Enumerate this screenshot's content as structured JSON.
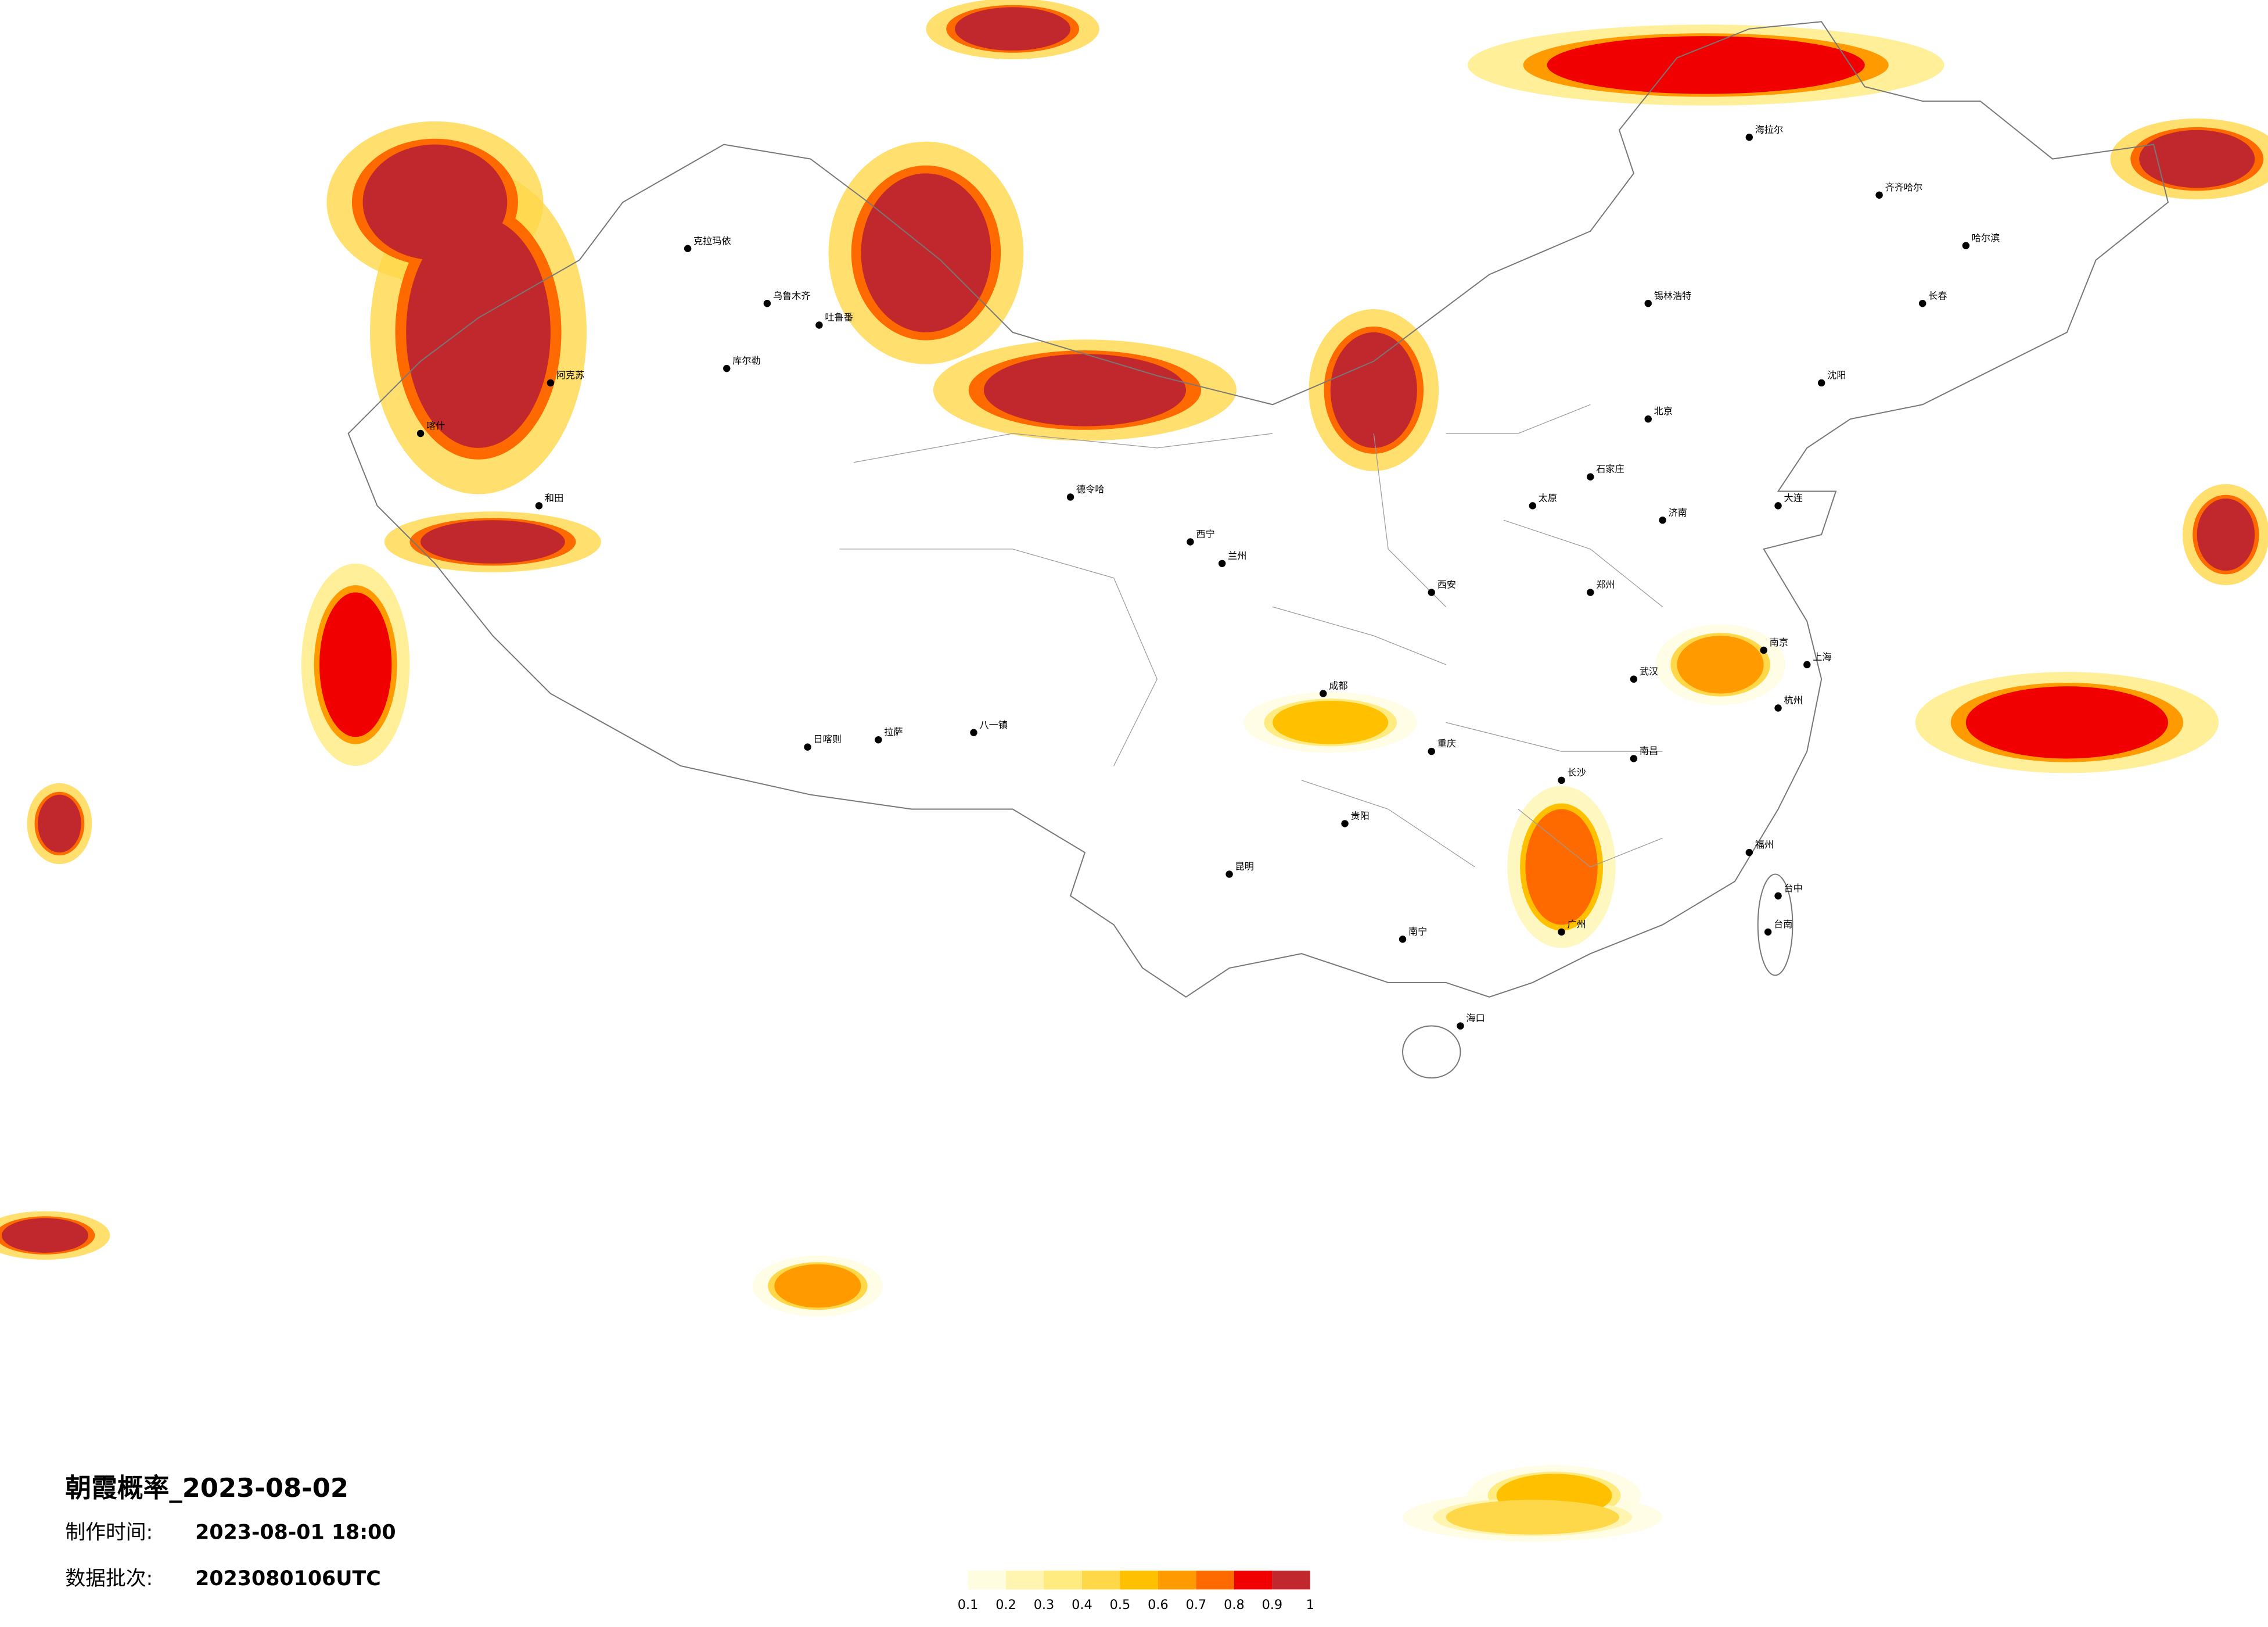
{
  "header": {
    "title": "朝霞概率_2023-08-02",
    "made_label": "制作时间:",
    "made_time": "2023-08-01 18:00",
    "batch_label": "数据批次:",
    "batch": "2023080106UTC"
  },
  "legend": {
    "colors": [
      "#fffde0",
      "#fff5b0",
      "#ffeb80",
      "#ffd84a",
      "#ffc000",
      "#ff9a00",
      "#ff6a00",
      "#f00000",
      "#c0282d"
    ],
    "ticks": [
      0.1,
      0.2,
      0.3,
      0.4,
      0.5,
      0.6,
      0.7,
      0.8,
      0.9,
      1
    ]
  },
  "cities": [
    "克拉玛依",
    "乌鲁木齐",
    "吐鲁番",
    "库尔勒",
    "阿克苏",
    "和田",
    "喀什",
    "德令哈",
    "拉萨",
    "日喀则",
    "八一镇",
    "西宁",
    "兰州",
    "海拉尔",
    "齐齐哈尔",
    "哈尔滨",
    "长春",
    "锡林浩特",
    "北京",
    "石家庄",
    "太原",
    "济南",
    "郑州",
    "西安",
    "成都",
    "重庆",
    "武汉",
    "南京",
    "上海",
    "杭州",
    "长沙",
    "南昌",
    "福州",
    "贵阳",
    "昆明",
    "南宁",
    "广州",
    "海口",
    "台中",
    "台南",
    "沈阳",
    "大连"
  ]
}
